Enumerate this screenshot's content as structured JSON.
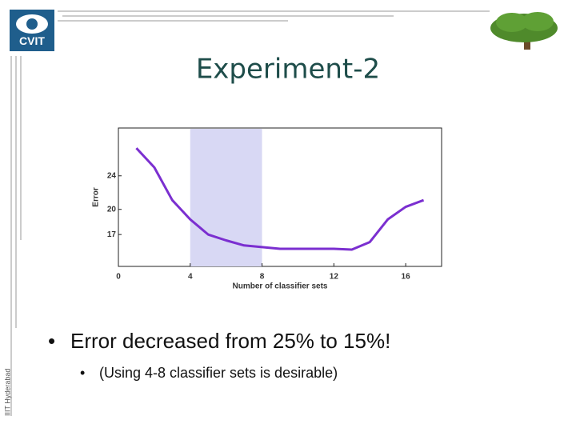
{
  "slide": {
    "title": "Experiment-2",
    "logo": "CVIT",
    "side_text": "IIIT Hyderabad",
    "bullets": [
      "Error decreased from 25% to 15%!",
      "(Using 4-8 classifier sets is desirable)"
    ]
  },
  "chart_data": {
    "type": "line",
    "x_label": "Number of classifier sets",
    "y_label": "Error",
    "xlim": [
      0,
      18
    ],
    "ylim": [
      13.2,
      29.7
    ],
    "xticks": [
      0,
      4,
      8,
      12,
      16
    ],
    "yticks": [
      17,
      20,
      24
    ],
    "highlight": {
      "x": [
        4,
        8
      ],
      "color": "#d8d8f4"
    },
    "series": [
      {
        "color": "#7b2fd0",
        "x": [
          1,
          2,
          3,
          4,
          5,
          6,
          7,
          8,
          9,
          10,
          11,
          12,
          13,
          14,
          15,
          16,
          17
        ],
        "values": [
          27.3,
          25,
          21.1,
          18.8,
          17,
          16.3,
          15.7,
          15.5,
          15.3,
          15.3,
          15.3,
          15.3,
          15.2,
          16.1,
          18.8,
          20.3,
          21.1
        ]
      }
    ]
  }
}
